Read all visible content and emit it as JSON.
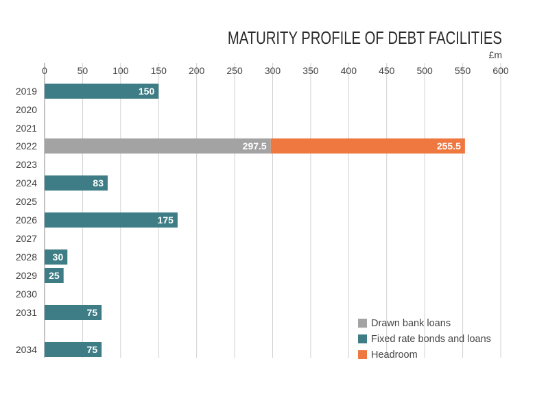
{
  "colors": {
    "drawn": "#a3a3a3",
    "fixed": "#3e7d85",
    "headroom": "#ef7840",
    "grid": "#d0d0d0",
    "text": "#404040"
  },
  "chart_data": {
    "type": "bar",
    "orientation": "horizontal",
    "stacked": true,
    "title": "MATURITY PROFILE OF DEBT FACILITIES",
    "unit": "£m",
    "xlim": [
      0,
      600
    ],
    "x_ticks": [
      "0",
      "50",
      "100",
      "150",
      "200",
      "250",
      "300",
      "350",
      "400",
      "450",
      "500",
      "550",
      "600"
    ],
    "categories": [
      "2019",
      "2020",
      "2021",
      "2022",
      "2023",
      "2024",
      "2025",
      "2026",
      "2027",
      "2028",
      "2029",
      "2030",
      "2031",
      "2034"
    ],
    "series": [
      {
        "name": "Drawn bank loans",
        "color_key": "drawn",
        "values": [
          null,
          null,
          null,
          297.5,
          null,
          null,
          null,
          null,
          null,
          null,
          null,
          null,
          null,
          null
        ],
        "labels": [
          null,
          null,
          null,
          "297.5",
          null,
          null,
          null,
          null,
          null,
          null,
          null,
          null,
          null,
          null
        ]
      },
      {
        "name": "Headroom",
        "color_key": "headroom",
        "values": [
          null,
          null,
          null,
          255.5,
          null,
          null,
          null,
          null,
          null,
          null,
          null,
          null,
          null,
          null
        ],
        "labels": [
          null,
          null,
          null,
          "255.5",
          null,
          null,
          null,
          null,
          null,
          null,
          null,
          null,
          null,
          null
        ]
      },
      {
        "name": "Fixed rate bonds and loans",
        "color_key": "fixed",
        "values": [
          150,
          null,
          null,
          null,
          null,
          83,
          null,
          175,
          null,
          30,
          25,
          null,
          75,
          75
        ],
        "labels": [
          "150",
          null,
          null,
          null,
          null,
          "83",
          null,
          "175",
          null,
          "30",
          "25",
          null,
          "75",
          "75"
        ]
      }
    ],
    "legend": {
      "position": "bottom-right",
      "entries": [
        {
          "name": "Drawn bank loans",
          "color_key": "drawn"
        },
        {
          "name": "Fixed rate bonds and loans",
          "color_key": "fixed"
        },
        {
          "name": "Headroom",
          "color_key": "headroom"
        }
      ]
    },
    "grid": true
  }
}
